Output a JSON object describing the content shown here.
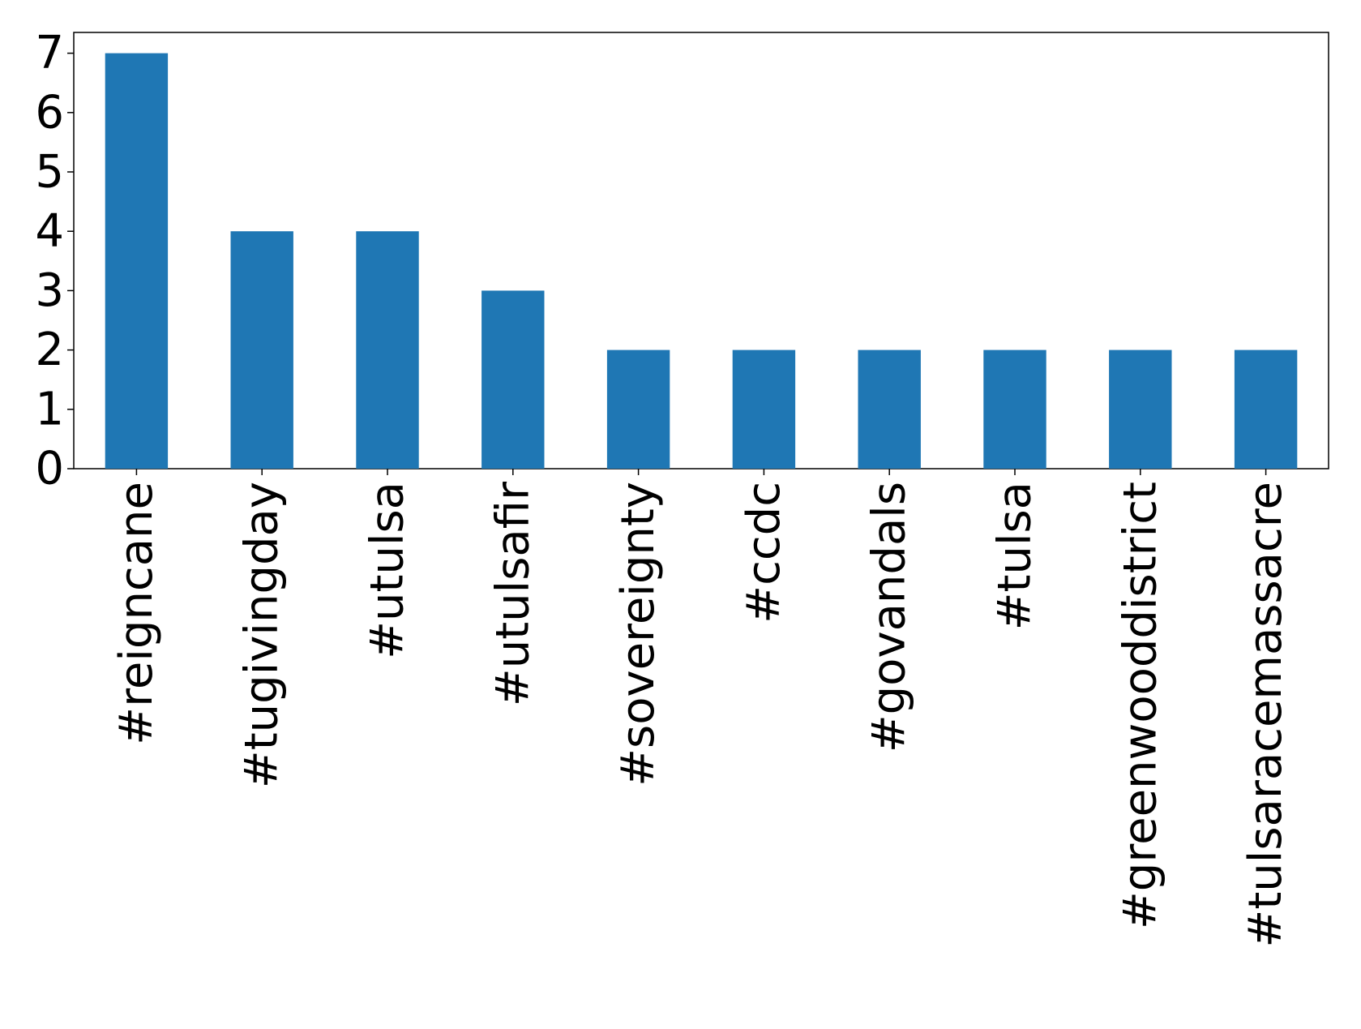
{
  "chart_data": {
    "type": "bar",
    "categories": [
      "#reigncane",
      "#tugivingday",
      "#utulsa",
      "#utulsafir",
      "#sovereignty",
      "#ccdc",
      "#govandals",
      "#tulsa",
      "#greenwooddistrict",
      "#tulsaracemassacre"
    ],
    "values": [
      7,
      4,
      4,
      3,
      2,
      2,
      2,
      2,
      2,
      2
    ],
    "color": "#1f77b4",
    "ylim": [
      0,
      7.35
    ],
    "yticks": [
      0,
      1,
      2,
      3,
      4,
      5,
      6,
      7
    ],
    "grid": false
  }
}
